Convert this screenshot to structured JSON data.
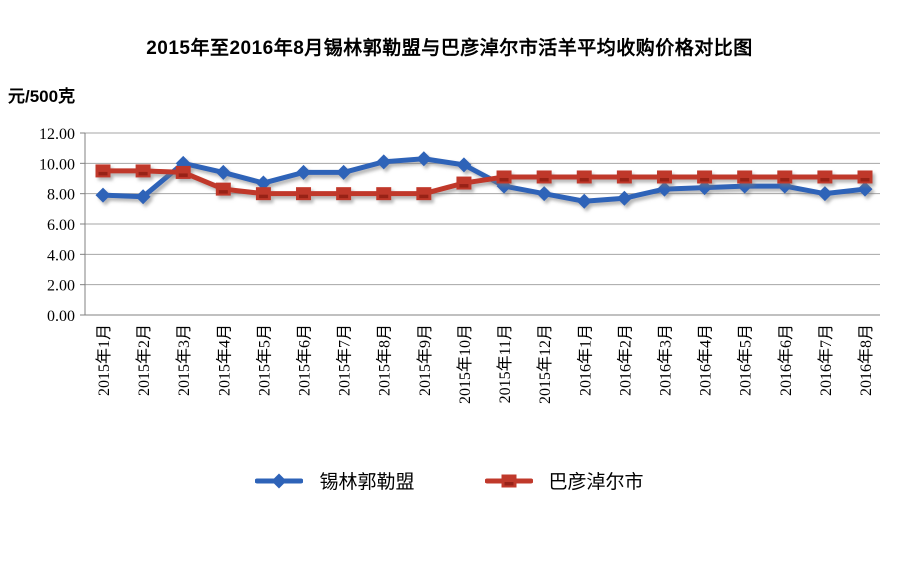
{
  "title": "2015年至2016年8月锡林郭勒盟与巴彦淖尔市活羊平均收购价格对比图",
  "y_axis_unit": "元/500克",
  "chart_data": {
    "type": "line",
    "title": "2015年至2016年8月锡林郭勒盟与巴彦淖尔市活羊平均收购价格对比图",
    "ylabel": "元/500克",
    "xlabel": "",
    "ylim": [
      0,
      12
    ],
    "ytick_step": 2,
    "ytick_labels": [
      "0.00",
      "2.00",
      "4.00",
      "6.00",
      "8.00",
      "10.00",
      "12.00"
    ],
    "grid": true,
    "legend_position": "bottom",
    "categories": [
      "2015年1月",
      "2015年2月",
      "2015年3月",
      "2015年4月",
      "2015年5月",
      "2015年6月",
      "2015年7月",
      "2015年8月",
      "2015年9月",
      "2015年10月",
      "2015年11月",
      "2015年12月",
      "2016年1月",
      "2016年2月",
      "2016年3月",
      "2016年4月",
      "2016年5月",
      "2016年6月",
      "2016年7月",
      "2016年8月"
    ],
    "series": [
      {
        "name": "锡林郭勒盟",
        "color": "#2E63B8",
        "marker": "diamond",
        "values": [
          7.9,
          7.8,
          10.0,
          9.4,
          8.7,
          9.4,
          9.4,
          10.1,
          10.3,
          9.9,
          8.5,
          8.0,
          7.5,
          7.7,
          8.3,
          8.4,
          8.5,
          8.5,
          8.0,
          8.3
        ]
      },
      {
        "name": "巴彦淖尔市",
        "color": "#C0392B",
        "marker": "square",
        "values": [
          9.5,
          9.5,
          9.4,
          8.3,
          8.0,
          8.0,
          8.0,
          8.0,
          8.0,
          8.7,
          9.1,
          9.1,
          9.1,
          9.1,
          9.1,
          9.1,
          9.1,
          9.1,
          9.1,
          9.1
        ]
      }
    ],
    "colors": {
      "gridline": "#A6A6A6",
      "axis": "#808080",
      "background": "#FFFFFF"
    }
  }
}
